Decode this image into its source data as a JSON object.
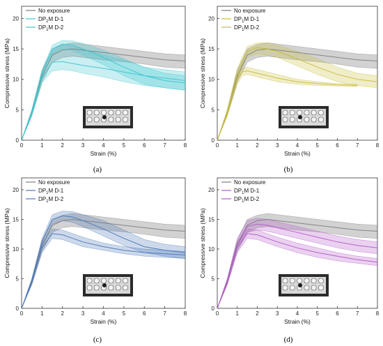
{
  "chart_data": [
    {
      "panel": "(a)",
      "type": "line",
      "xlabel": "Strain (%)",
      "ylabel": "Compressive stress (MPa)",
      "xlim": [
        0,
        8
      ],
      "ylim": [
        0,
        22
      ],
      "xticks": [
        "0",
        "1",
        "2",
        "3",
        "4",
        "5",
        "6",
        "7",
        "8"
      ],
      "yticks": [
        "0",
        "5",
        "10",
        "15",
        "20"
      ],
      "legend": "top-left",
      "colors": {
        "reference": "#7f7f7f",
        "exposed": "#3cc6cf"
      },
      "series": [
        {
          "name": "No exposure",
          "color": "#7f7f7f",
          "x": [
            0,
            0.5,
            1.0,
            1.5,
            2.0,
            2.5,
            3.0,
            4.0,
            5.0,
            6.0,
            7.0,
            8.0
          ],
          "y": [
            0,
            4.5,
            10.5,
            14.0,
            14.8,
            15.0,
            14.8,
            14.4,
            14.0,
            13.6,
            13.2,
            13.0
          ],
          "upper": [
            0,
            5.0,
            11.5,
            15.0,
            15.7,
            16.0,
            15.8,
            15.4,
            15.0,
            14.6,
            14.2,
            14.0
          ],
          "lower": [
            0,
            4.0,
            9.6,
            12.8,
            13.6,
            13.8,
            13.6,
            13.2,
            12.9,
            12.5,
            12.0,
            11.8
          ]
        },
        {
          "name": "DP$_1$M D-1",
          "color": "#3cc6cf",
          "x": [
            0,
            0.5,
            1.0,
            1.5,
            2.0,
            2.5,
            3.0,
            4.0,
            5.0,
            6.0,
            7.0,
            8.0
          ],
          "y": [
            0,
            4.6,
            11.0,
            15.0,
            15.8,
            15.6,
            15.0,
            13.6,
            12.0,
            10.6,
            9.8,
            9.4
          ],
          "upper": [
            0,
            5.0,
            11.6,
            15.6,
            16.4,
            16.3,
            15.9,
            14.8,
            13.4,
            12.0,
            11.0,
            10.6
          ],
          "lower": [
            0,
            4.2,
            10.3,
            14.2,
            15.0,
            14.7,
            14.0,
            12.4,
            10.6,
            9.2,
            8.6,
            8.2
          ]
        },
        {
          "name": "DP$_1$M D-2",
          "color": "#3cc6cf",
          "x": [
            0,
            0.5,
            1.0,
            1.5,
            2.0,
            2.5,
            3.0,
            4.0,
            5.0,
            6.0,
            7.0,
            8.0
          ],
          "y": [
            0,
            4.4,
            10.2,
            12.8,
            12.9,
            12.6,
            12.3,
            11.8,
            11.2,
            10.6,
            10.2,
            9.8
          ],
          "upper": [
            0,
            4.8,
            11.2,
            15.0,
            15.6,
            15.4,
            15.0,
            14.0,
            13.2,
            12.0,
            11.6,
            11.2
          ],
          "lower": [
            0,
            4.0,
            9.4,
            11.4,
            11.6,
            11.4,
            11.0,
            10.4,
            9.6,
            9.0,
            8.6,
            8.2
          ]
        }
      ]
    },
    {
      "panel": "(b)",
      "type": "line",
      "xlabel": "Strain (%)",
      "ylabel": "Compressive stress (MPa)",
      "xlim": [
        0,
        8
      ],
      "ylim": [
        0,
        22
      ],
      "xticks": [
        "0",
        "1",
        "2",
        "3",
        "4",
        "5",
        "6",
        "7",
        "8"
      ],
      "yticks": [
        "0",
        "5",
        "10",
        "15",
        "20"
      ],
      "legend": "top-left",
      "colors": {
        "reference": "#7f7f7f",
        "exposed": "#c8bd3c"
      },
      "series": [
        {
          "name": "No exposure",
          "color": "#7f7f7f",
          "x": [
            0,
            0.5,
            1.0,
            1.5,
            2.0,
            2.5,
            3.0,
            4.0,
            5.0,
            6.0,
            7.0,
            8.0
          ],
          "y": [
            0,
            4.5,
            10.5,
            14.0,
            14.8,
            15.0,
            14.8,
            14.4,
            14.0,
            13.6,
            13.2,
            13.0
          ],
          "upper": [
            0,
            5.0,
            11.5,
            15.0,
            15.7,
            16.0,
            15.8,
            15.4,
            15.0,
            14.6,
            14.2,
            14.0
          ],
          "lower": [
            0,
            4.0,
            9.6,
            12.8,
            13.6,
            13.8,
            13.6,
            13.2,
            12.9,
            12.5,
            12.0,
            11.8
          ]
        },
        {
          "name": "DP$_1$M D-1",
          "color": "#c8bd3c",
          "x": [
            0,
            0.5,
            1.0,
            1.5,
            2.0,
            2.5,
            3.0,
            4.0,
            5.0,
            6.0,
            7.0,
            8.0
          ],
          "y": [
            0,
            4.6,
            11.0,
            14.6,
            15.2,
            15.0,
            14.6,
            13.4,
            12.0,
            10.8,
            10.0,
            9.6
          ],
          "upper": [
            0,
            5.0,
            11.8,
            15.4,
            16.0,
            16.0,
            15.6,
            14.6,
            13.4,
            12.0,
            11.0,
            10.6
          ],
          "lower": [
            0,
            4.2,
            10.2,
            13.6,
            14.2,
            14.0,
            13.6,
            12.2,
            10.8,
            9.6,
            9.0,
            8.6
          ]
        },
        {
          "name": "DP$_1$M D-2",
          "color": "#c8bd3c",
          "x": [
            0,
            0.5,
            1.0,
            1.25,
            1.5,
            2.0,
            3.0,
            4.0,
            5.0,
            6.0,
            7.0
          ],
          "y": [
            0,
            4.4,
            10.0,
            11.2,
            11.4,
            11.0,
            10.2,
            9.6,
            9.3,
            9.1,
            9.0
          ],
          "upper": [
            0,
            4.8,
            10.8,
            11.8,
            12.0,
            11.6,
            10.8,
            10.0,
            9.6,
            9.3,
            9.2
          ],
          "lower": [
            0,
            4.0,
            9.2,
            10.6,
            10.8,
            10.4,
            9.6,
            9.2,
            9.0,
            8.9,
            8.8
          ]
        }
      ]
    },
    {
      "panel": "(c)",
      "type": "line",
      "xlabel": "Strain (%)",
      "ylabel": "Compressive stress (MPa)",
      "xlim": [
        0,
        8
      ],
      "ylim": [
        0,
        22
      ],
      "xticks": [
        "0",
        "1",
        "2",
        "3",
        "4",
        "5",
        "6",
        "7",
        "8"
      ],
      "yticks": [
        "0",
        "5",
        "10",
        "15",
        "20"
      ],
      "legend": "top-left",
      "colors": {
        "reference": "#7f7f7f",
        "exposed": "#4a78b8"
      },
      "series": [
        {
          "name": "No exposure",
          "color": "#7f7f7f",
          "x": [
            0,
            0.5,
            1.0,
            1.5,
            2.0,
            2.5,
            3.0,
            4.0,
            5.0,
            6.0,
            7.0,
            8.0
          ],
          "y": [
            0,
            4.5,
            10.5,
            14.0,
            14.8,
            15.0,
            14.8,
            14.4,
            14.0,
            13.6,
            13.2,
            13.0
          ],
          "upper": [
            0,
            5.0,
            11.5,
            15.0,
            15.7,
            16.0,
            15.8,
            15.4,
            15.0,
            14.6,
            14.2,
            14.0
          ],
          "lower": [
            0,
            4.0,
            9.6,
            12.8,
            13.6,
            13.8,
            13.6,
            13.2,
            12.9,
            12.5,
            12.0,
            11.8
          ]
        },
        {
          "name": "DP$_1$M D-1",
          "color": "#4a78b8",
          "x": [
            0,
            0.5,
            1.0,
            1.5,
            2.0,
            2.5,
            3.0,
            4.0,
            5.0,
            6.0,
            7.0,
            8.0
          ],
          "y": [
            0,
            4.6,
            11.2,
            15.0,
            15.6,
            15.4,
            14.8,
            13.4,
            11.8,
            10.4,
            9.8,
            9.4
          ],
          "upper": [
            0,
            5.0,
            11.8,
            15.8,
            16.4,
            16.3,
            15.8,
            14.8,
            13.2,
            11.6,
            10.8,
            10.4
          ],
          "lower": [
            0,
            4.2,
            10.4,
            14.2,
            14.8,
            14.5,
            13.8,
            12.2,
            10.6,
            9.4,
            8.8,
            8.4
          ]
        },
        {
          "name": "DP$_1$M D-2",
          "color": "#4a78b8",
          "x": [
            0,
            0.5,
            1.0,
            1.5,
            2.0,
            2.5,
            3.0,
            4.0,
            5.0,
            6.0,
            7.0,
            8.0
          ],
          "y": [
            0,
            4.4,
            10.2,
            12.6,
            12.4,
            11.8,
            11.2,
            10.4,
            9.8,
            9.4,
            9.2,
            9.0
          ],
          "upper": [
            0,
            4.8,
            11.0,
            13.4,
            13.2,
            12.6,
            12.0,
            11.0,
            10.4,
            10.0,
            9.8,
            9.6
          ],
          "lower": [
            0,
            4.0,
            9.4,
            11.8,
            11.6,
            11.0,
            10.4,
            9.8,
            9.2,
            8.8,
            8.6,
            8.4
          ]
        }
      ]
    },
    {
      "panel": "(d)",
      "type": "line",
      "xlabel": "Strain (%)",
      "ylabel": "Compressive stress (MPa)",
      "xlim": [
        0,
        8
      ],
      "ylim": [
        0,
        22
      ],
      "xticks": [
        "0",
        "1",
        "2",
        "3",
        "4",
        "5",
        "6",
        "7",
        "8"
      ],
      "yticks": [
        "0",
        "5",
        "10",
        "15",
        "20"
      ],
      "legend": "top-left",
      "colors": {
        "reference": "#7f7f7f",
        "exposed": "#b25bc8"
      },
      "series": [
        {
          "name": "No exposure",
          "color": "#7f7f7f",
          "x": [
            0,
            0.5,
            1.0,
            1.5,
            2.0,
            2.5,
            3.0,
            4.0,
            5.0,
            6.0,
            7.0,
            8.0
          ],
          "y": [
            0,
            4.5,
            10.5,
            14.0,
            14.8,
            15.0,
            14.8,
            14.4,
            14.0,
            13.6,
            13.2,
            13.0
          ],
          "upper": [
            0,
            5.0,
            11.5,
            15.0,
            15.7,
            16.0,
            15.8,
            15.4,
            15.0,
            14.6,
            14.2,
            14.0
          ],
          "lower": [
            0,
            4.0,
            9.6,
            12.8,
            13.6,
            13.8,
            13.6,
            13.2,
            12.9,
            12.5,
            12.0,
            11.8
          ]
        },
        {
          "name": "DP$_1$M D-1",
          "color": "#b25bc8",
          "x": [
            0,
            0.5,
            1.0,
            1.5,
            2.0,
            2.5,
            3.0,
            4.0,
            5.0,
            6.0,
            7.0,
            8.0
          ],
          "y": [
            0,
            4.6,
            11.0,
            13.8,
            14.2,
            14.0,
            13.6,
            12.8,
            12.0,
            11.2,
            10.6,
            10.2
          ],
          "upper": [
            0,
            5.0,
            11.8,
            14.8,
            15.2,
            15.0,
            14.6,
            13.8,
            13.0,
            12.2,
            11.6,
            11.2
          ],
          "lower": [
            0,
            4.2,
            10.2,
            12.8,
            13.2,
            13.0,
            12.6,
            11.8,
            11.0,
            10.2,
            9.6,
            9.2
          ]
        },
        {
          "name": "DP$_1$M D-2",
          "color": "#b25bc8",
          "x": [
            0,
            0.5,
            1.0,
            1.5,
            2.0,
            2.5,
            3.0,
            4.0,
            5.0,
            6.0,
            7.0,
            8.0
          ],
          "y": [
            0,
            4.4,
            10.2,
            12.6,
            12.4,
            11.8,
            11.2,
            10.2,
            9.4,
            8.8,
            8.2,
            7.8
          ],
          "upper": [
            0,
            4.8,
            11.0,
            13.4,
            13.2,
            12.6,
            12.0,
            11.0,
            10.2,
            9.4,
            8.8,
            8.4
          ],
          "lower": [
            0,
            4.0,
            9.4,
            11.8,
            11.6,
            11.0,
            10.4,
            9.4,
            8.6,
            8.0,
            7.6,
            7.2
          ]
        }
      ]
    }
  ]
}
